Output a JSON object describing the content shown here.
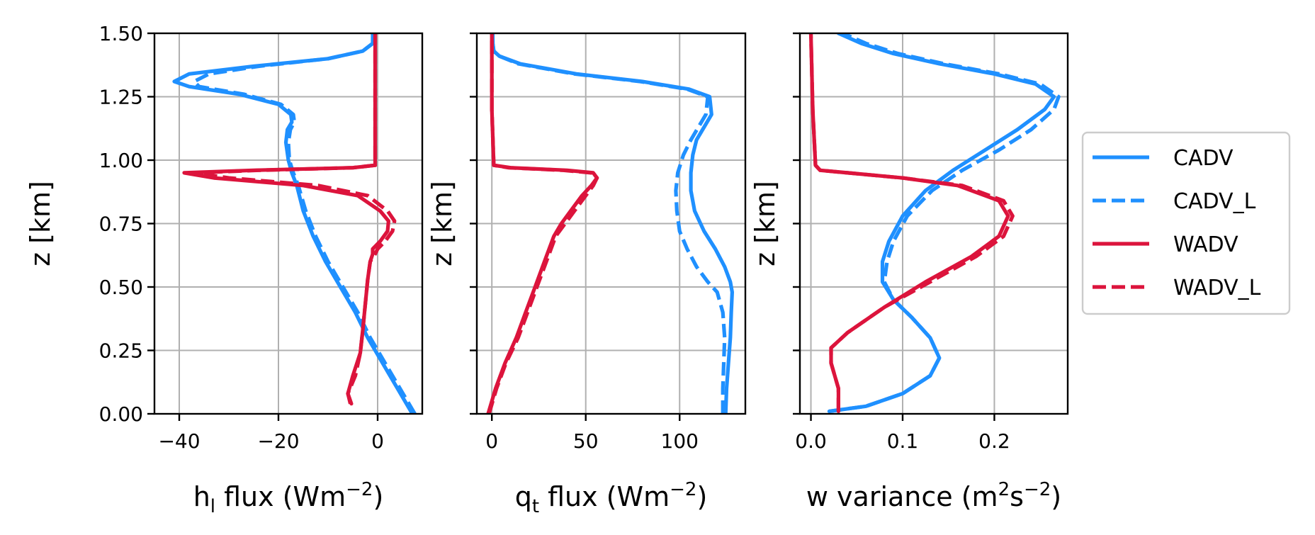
{
  "chart_data": {
    "type": "line",
    "ylabel": "z [km]",
    "ylim": [
      0,
      1.5
    ],
    "yticks": [
      "0.00",
      "0.25",
      "0.50",
      "0.75",
      "1.00",
      "1.25",
      "1.50"
    ],
    "grid": true,
    "legend": {
      "placement": "right",
      "entries": [
        {
          "name": "CADV",
          "color": "#1f90ff",
          "style": "solid"
        },
        {
          "name": "CADV_L",
          "color": "#1f90ff",
          "style": "dashed"
        },
        {
          "name": "WADV",
          "color": "#dc143c",
          "style": "solid"
        },
        {
          "name": "WADV_L",
          "color": "#dc143c",
          "style": "dashed"
        }
      ]
    },
    "panels": [
      {
        "xlabel_base": "h",
        "xlabel_sub": "l",
        "xlabel_mid": " flux (Wm",
        "xlabel_sup": "−2",
        "xlabel_end": ")",
        "xlim": [
          -45,
          9
        ],
        "xticks": [
          -40,
          -20,
          0
        ],
        "xtick_labels": [
          "−40",
          "−20",
          "0"
        ],
        "series": [
          {
            "name": "CADV",
            "x": [
              7,
              4,
              1,
              -2,
              -4.5,
              -7.5,
              -10.5,
              -13,
              -15,
              -16.3,
              -17.3,
              -18,
              -18.5,
              -18.2,
              -17.3,
              -17.5,
              -20,
              -28,
              -38,
              -41,
              -38,
              -25,
              -10,
              -3,
              -1,
              -1
            ],
            "z": [
              0,
              0.1,
              0.2,
              0.3,
              0.4,
              0.5,
              0.6,
              0.7,
              0.8,
              0.9,
              0.95,
              1.0,
              1.07,
              1.12,
              1.15,
              1.18,
              1.22,
              1.26,
              1.29,
              1.31,
              1.34,
              1.37,
              1.4,
              1.43,
              1.46,
              1.5
            ]
          },
          {
            "name": "CADV_L",
            "x": [
              7.5,
              4.5,
              1.5,
              -1.5,
              -4,
              -7,
              -10,
              -12.5,
              -14.5,
              -16,
              -17,
              -17.8,
              -18,
              -17.6,
              -16.8,
              -17,
              -19.5,
              -27,
              -36,
              -37,
              -34,
              -24,
              -10,
              -3,
              -1,
              -0.5
            ],
            "z": [
              0,
              0.1,
              0.2,
              0.3,
              0.4,
              0.5,
              0.6,
              0.7,
              0.8,
              0.9,
              0.95,
              1.0,
              1.07,
              1.12,
              1.15,
              1.18,
              1.22,
              1.26,
              1.29,
              1.31,
              1.34,
              1.37,
              1.4,
              1.43,
              1.46,
              1.5
            ]
          },
          {
            "name": "WADV",
            "x": [
              -5.3,
              -6,
              -5,
              -3.5,
              -3,
              -2.5,
              -2,
              -1.5,
              -1,
              -1,
              0.5,
              2,
              2.2,
              0.5,
              -4,
              -15,
              -33,
              -39,
              -25,
              -5,
              -0.5,
              -0.5,
              -0.5
            ],
            "z": [
              0.04,
              0.08,
              0.15,
              0.24,
              0.33,
              0.43,
              0.53,
              0.6,
              0.63,
              0.65,
              0.68,
              0.72,
              0.76,
              0.8,
              0.86,
              0.9,
              0.93,
              0.95,
              0.96,
              0.97,
              0.98,
              1.2,
              1.5
            ]
          },
          {
            "name": "WADV_L",
            "x": [
              -5.5,
              -6,
              -4.5,
              -3.5,
              -3,
              -2.5,
              -2,
              -1.5,
              -0.5,
              0,
              1.5,
              3,
              3.4,
              2,
              -2,
              -12,
              -30,
              -37,
              -24,
              -5,
              -0.5,
              -0.5,
              -0.5
            ],
            "z": [
              0.04,
              0.08,
              0.15,
              0.24,
              0.33,
              0.43,
              0.53,
              0.6,
              0.63,
              0.65,
              0.68,
              0.72,
              0.76,
              0.8,
              0.86,
              0.9,
              0.93,
              0.95,
              0.96,
              0.97,
              0.98,
              1.2,
              1.5
            ]
          }
        ]
      },
      {
        "xlabel_base": "q",
        "xlabel_sub": "t",
        "xlabel_mid": " flux (Wm",
        "xlabel_sup": "−2",
        "xlabel_end": ")",
        "xlim": [
          -8,
          135
        ],
        "xticks": [
          0,
          50,
          100
        ],
        "xtick_labels": [
          "0",
          "50",
          "100"
        ],
        "series": [
          {
            "name": "CADV",
            "x": [
              124.5,
              125,
              126,
              127,
              127.5,
              128,
              127,
              124,
              119,
              113,
              108,
              106,
              106,
              107,
              109,
              113,
              117,
              116,
              105,
              80,
              45,
              15,
              4,
              1,
              0.5,
              0.5
            ],
            "z": [
              0,
              0.1,
              0.2,
              0.3,
              0.4,
              0.48,
              0.52,
              0.58,
              0.65,
              0.72,
              0.8,
              0.88,
              0.95,
              1.02,
              1.08,
              1.13,
              1.18,
              1.25,
              1.28,
              1.31,
              1.34,
              1.38,
              1.41,
              1.43,
              1.46,
              1.5
            ]
          },
          {
            "name": "CADV_L",
            "x": [
              123,
              123,
              123.5,
              124,
              123,
              120,
              115,
              109,
              104,
              100,
              98.5,
              98,
              99,
              102,
              106,
              110,
              114,
              115,
              104,
              79,
              44,
              14,
              4,
              1,
              0.5,
              0.5
            ],
            "z": [
              0,
              0.1,
              0.2,
              0.3,
              0.4,
              0.48,
              0.52,
              0.58,
              0.65,
              0.72,
              0.8,
              0.88,
              0.95,
              1.02,
              1.08,
              1.13,
              1.18,
              1.25,
              1.28,
              1.31,
              1.34,
              1.38,
              1.41,
              1.43,
              1.46,
              1.5
            ]
          },
          {
            "name": "WADV",
            "x": [
              -2,
              2,
              7,
              13,
              18,
              23,
              28,
              33,
              37,
              42,
              48,
              53,
              56,
              54,
              40,
              10,
              1,
              0,
              0
            ],
            "z": [
              0,
              0.1,
              0.2,
              0.3,
              0.4,
              0.5,
              0.6,
              0.7,
              0.75,
              0.8,
              0.86,
              0.9,
              0.93,
              0.95,
              0.96,
              0.97,
              0.98,
              1.2,
              1.5
            ]
          },
          {
            "name": "WADV_L",
            "x": [
              -1.5,
              2.5,
              7.5,
              14,
              19,
              24,
              29,
              34,
              39,
              44,
              50,
              54,
              56,
              53,
              38,
              9,
              1,
              0,
              0
            ],
            "z": [
              0,
              0.1,
              0.2,
              0.3,
              0.4,
              0.5,
              0.6,
              0.7,
              0.75,
              0.8,
              0.86,
              0.9,
              0.93,
              0.95,
              0.96,
              0.97,
              0.98,
              1.2,
              1.5
            ]
          }
        ]
      },
      {
        "xlabel_base": "w variance (m",
        "xlabel_sup1": "2",
        "xlabel_mid": "s",
        "xlabel_sup": "−2",
        "xlabel_end": ")",
        "xlim": [
          -0.012,
          0.28
        ],
        "xticks": [
          0.0,
          0.1,
          0.2
        ],
        "xtick_labels": [
          "0.0",
          "0.1",
          "0.2"
        ],
        "series": [
          {
            "name": "CADV",
            "x": [
              0.02,
              0.06,
              0.1,
              0.13,
              0.14,
              0.13,
              0.11,
              0.09,
              0.078,
              0.078,
              0.085,
              0.1,
              0.125,
              0.155,
              0.19,
              0.225,
              0.255,
              0.265,
              0.245,
              0.2,
              0.14,
              0.09,
              0.055,
              0.03
            ],
            "z": [
              0.01,
              0.03,
              0.08,
              0.15,
              0.22,
              0.3,
              0.38,
              0.45,
              0.52,
              0.6,
              0.68,
              0.78,
              0.88,
              0.96,
              1.04,
              1.12,
              1.2,
              1.25,
              1.3,
              1.34,
              1.38,
              1.42,
              1.46,
              1.5
            ]
          },
          {
            "name": "CADV_L",
            "x": [
              0.02,
              0.06,
              0.1,
              0.13,
              0.14,
              0.13,
              0.11,
              0.09,
              0.08,
              0.083,
              0.09,
              0.105,
              0.132,
              0.165,
              0.205,
              0.24,
              0.265,
              0.27,
              0.25,
              0.205,
              0.145,
              0.095,
              0.06,
              0.035
            ],
            "z": [
              0.01,
              0.03,
              0.08,
              0.15,
              0.22,
              0.3,
              0.38,
              0.45,
              0.52,
              0.6,
              0.68,
              0.78,
              0.88,
              0.96,
              1.04,
              1.12,
              1.2,
              1.25,
              1.3,
              1.34,
              1.38,
              1.42,
              1.46,
              1.5
            ]
          },
          {
            "name": "WADV",
            "x": [
              0.03,
              0.03,
              0.022,
              0.022,
              0.04,
              0.08,
              0.125,
              0.175,
              0.205,
              0.215,
              0.205,
              0.16,
              0.1,
              0.04,
              0.01,
              0.005,
              0.002,
              0.0
            ],
            "z": [
              0.01,
              0.1,
              0.2,
              0.26,
              0.32,
              0.42,
              0.52,
              0.62,
              0.7,
              0.78,
              0.84,
              0.9,
              0.93,
              0.95,
              0.96,
              0.98,
              1.2,
              1.5
            ]
          },
          {
            "name": "WADV_L",
            "x": [
              0.03,
              0.03,
              0.022,
              0.022,
              0.04,
              0.08,
              0.13,
              0.18,
              0.21,
              0.22,
              0.21,
              0.165,
              0.1,
              0.04,
              0.01,
              0.005,
              0.002,
              0.0
            ],
            "z": [
              0.01,
              0.1,
              0.2,
              0.26,
              0.32,
              0.42,
              0.52,
              0.62,
              0.7,
              0.78,
              0.84,
              0.9,
              0.93,
              0.95,
              0.96,
              0.98,
              1.2,
              1.5
            ]
          }
        ]
      }
    ]
  }
}
